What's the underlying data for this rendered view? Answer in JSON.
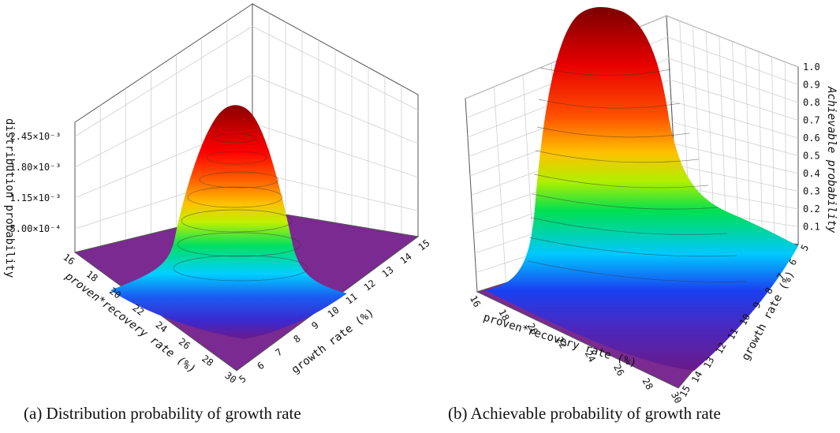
{
  "chart_data": [
    {
      "type": "surface3d",
      "caption": "(a) Distribution probability of growth rate",
      "zlabel": "distribution probability",
      "xlabel": "proven*recovery rate (%)",
      "ylabel": "growth rate (%)",
      "x_ticks": [
        "16",
        "18",
        "20",
        "22",
        "24",
        "26",
        "28",
        "30"
      ],
      "y_ticks": [
        "5",
        "6",
        "7",
        "8",
        "9",
        "10",
        "11",
        "12",
        "13",
        "14",
        "15"
      ],
      "z_ticks": [
        "5.00×10⁻⁴",
        "1.15×10⁻³",
        "1.80×10⁻³",
        "2.45×10⁻³"
      ],
      "z_values": [
        0.0005,
        0.00115,
        0.0018,
        0.00245
      ],
      "xlim": [
        16,
        30
      ],
      "ylim": [
        5,
        15
      ],
      "zlim": [
        0,
        0.00275
      ],
      "peak": {
        "x": 23,
        "y": 10,
        "z": 0.00242
      },
      "colormap": [
        "#6a1a8a",
        "#2030e0",
        "#00d0ff",
        "#00e060",
        "#f0f000",
        "#ff8000",
        "#ff0000",
        "#8b0000"
      ]
    },
    {
      "type": "surface3d",
      "caption": "(b) Achievable probability of growth rate",
      "zlabel": "Achievable probability",
      "xlabel": "proven*recovery rate (%)",
      "ylabel": "growth rate (%)",
      "x_ticks": [
        "16",
        "18",
        "20",
        "22",
        "24",
        "26",
        "28",
        "30"
      ],
      "y_ticks": [
        "5",
        "6",
        "7",
        "8",
        "9",
        "10",
        "11",
        "12",
        "13",
        "14",
        "15"
      ],
      "z_ticks": [
        "0.1",
        "0.2",
        "0.3",
        "0.4",
        "0.5",
        "0.6",
        "0.7",
        "0.8",
        "0.9",
        "1.0"
      ],
      "xlim": [
        16,
        30
      ],
      "ylim": [
        5,
        15
      ],
      "zlim": [
        0,
        1.0
      ],
      "peak": {
        "x": 23,
        "y": 5,
        "z": 1.0
      },
      "colormap": [
        "#6a1a8a",
        "#2030e0",
        "#00d0ff",
        "#00e060",
        "#f0f000",
        "#ff8000",
        "#ff0000",
        "#8b0000"
      ]
    }
  ]
}
